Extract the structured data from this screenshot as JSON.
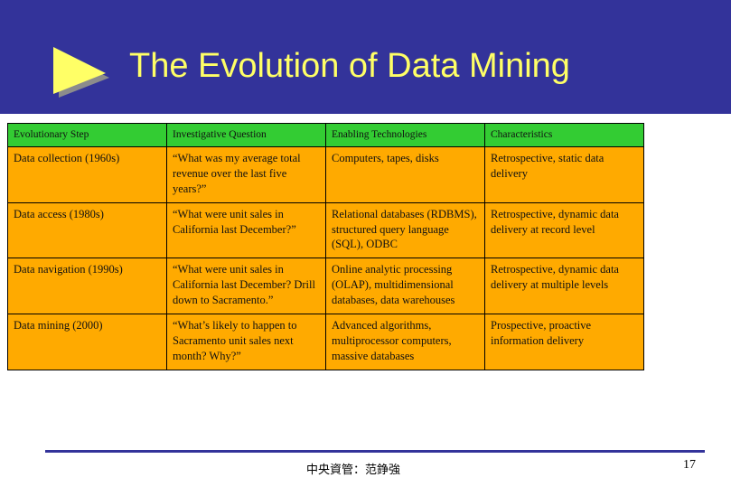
{
  "slide": {
    "title": "The Evolution of Data Mining",
    "footer": "中央資管：范錚強",
    "page_number": "17"
  },
  "colors": {
    "header_band": "#33339a",
    "title_text": "#ffff66",
    "arrow_fill": "#ffff66",
    "table_header_bg": "#33cc33",
    "table_body_bg": "#ffaa00"
  },
  "icons": {
    "title_arrow": "right-arrow-icon"
  },
  "table": {
    "headers": [
      "Evolutionary Step",
      "Investigative Question",
      "Enabling Technologies",
      "Characteristics"
    ],
    "rows": [
      [
        "Data collection (1960s)",
        "“What was my average total revenue over the last five years?”",
        "Computers, tapes, disks",
        "Retrospective, static data delivery"
      ],
      [
        "Data access (1980s)",
        "“What were unit sales in California last December?”",
        "Relational databases (RDBMS), structured query language (SQL), ODBC",
        "Retrospective, dynamic data delivery at record level"
      ],
      [
        "Data navigation (1990s)",
        "“What were unit sales in California last December? Drill down to Sacramento.”",
        "Online analytic processing (OLAP), multidimensional databases, data warehouses",
        "Retrospective, dynamic data delivery at multiple levels"
      ],
      [
        "Data mining (2000)",
        "“What’s likely to happen to Sacramento unit sales next month? Why?”",
        "Advanced algorithms, multiprocessor computers, massive databases",
        "Prospective, proactive information delivery"
      ]
    ]
  }
}
